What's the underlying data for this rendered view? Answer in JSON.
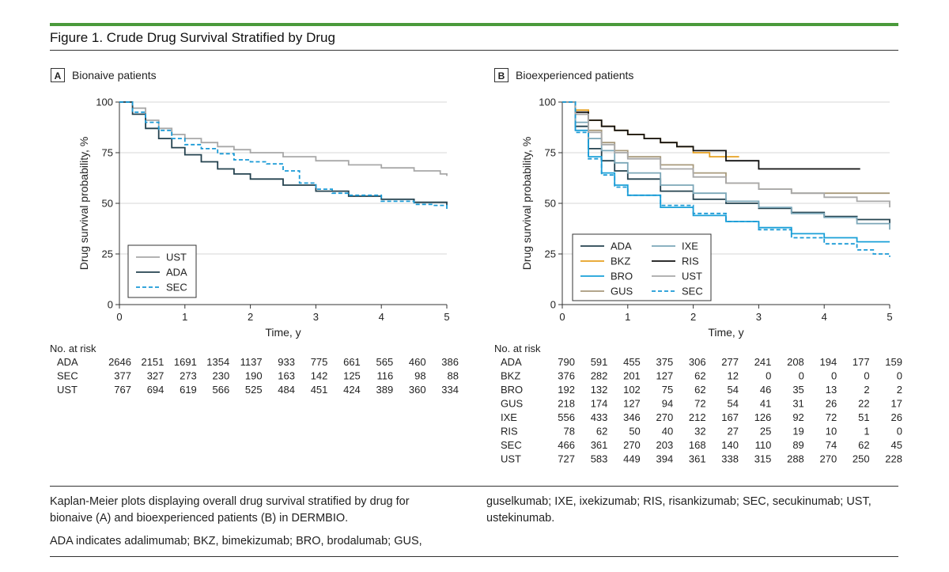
{
  "colors": {
    "title_bar": "#4a9a3b"
  },
  "figure_title": "Figure 1. Crude Drug Survival Stratified by Drug",
  "panels": [
    {
      "letter": "A",
      "label": "Bionaive patients"
    },
    {
      "letter": "B",
      "label": "Bioexperienced patients"
    }
  ],
  "risk_table_label": "No. at risk",
  "caption": {
    "col1": [
      "Kaplan-Meier plots displaying overall drug survival stratified by drug for bionaive (A) and bioexperienced patients (B) in DERMBIO.",
      "ADA indicates adalimumab; BKZ, bimekizumab; BRO, brodalumab; GUS,"
    ],
    "col2": [
      "guselkumab; IXE, ixekizumab; RIS, risankizumab; SEC, secukinumab; UST, ustekinumab."
    ]
  },
  "chart_data": [
    {
      "type": "line",
      "panel": "A",
      "xlabel": "Time, y",
      "ylabel": "Drug survival probability, %",
      "xlim": [
        0,
        5
      ],
      "ylim": [
        0,
        100
      ],
      "xticks": [
        0,
        1,
        2,
        3,
        4,
        5
      ],
      "yticks": [
        0,
        25,
        50,
        75,
        100
      ],
      "grid": "horizontal",
      "legend_position": "bottom-left",
      "series": [
        {
          "name": "UST",
          "color": "#a8a8a8",
          "dash": "solid",
          "x": [
            0,
            0.2,
            0.4,
            0.6,
            0.8,
            1.0,
            1.25,
            1.5,
            1.75,
            2.0,
            2.5,
            3.0,
            3.5,
            4.0,
            4.5,
            4.9,
            5.0
          ],
          "y": [
            100,
            97,
            91,
            87,
            84,
            82,
            80,
            78,
            76.5,
            75,
            73,
            71,
            69,
            67.5,
            66,
            64.5,
            63.5
          ]
        },
        {
          "name": "ADA",
          "color": "#24424f",
          "dash": "solid",
          "x": [
            0,
            0.2,
            0.4,
            0.6,
            0.8,
            1.0,
            1.25,
            1.5,
            1.75,
            2.0,
            2.5,
            3.0,
            3.5,
            4.0,
            4.5,
            5.0
          ],
          "y": [
            100,
            94,
            87,
            82,
            77.5,
            74,
            70.5,
            67,
            64.5,
            62,
            59,
            56,
            53.5,
            52,
            50.5,
            49
          ]
        },
        {
          "name": "SEC",
          "color": "#1a9ad6",
          "dash": "dashed",
          "x": [
            0,
            0.2,
            0.4,
            0.6,
            0.8,
            1.0,
            1.25,
            1.5,
            1.75,
            2.0,
            2.25,
            2.5,
            2.75,
            3.0,
            3.25,
            3.5,
            4.0,
            4.5,
            4.8,
            5.0
          ],
          "y": [
            100,
            95,
            90,
            86,
            82,
            79,
            77,
            74.5,
            71.5,
            70.5,
            69.5,
            66,
            60,
            57,
            55,
            54,
            51,
            49.5,
            49,
            46.5
          ]
        }
      ],
      "risk_table": {
        "times": [
          0,
          0.5,
          1,
          1.5,
          2,
          2.5,
          3,
          3.5,
          4,
          4.5,
          5
        ],
        "rows": [
          {
            "name": "ADA",
            "values": [
              2646,
              2151,
              1691,
              1354,
              1137,
              933,
              775,
              661,
              565,
              460,
              386
            ]
          },
          {
            "name": "SEC",
            "values": [
              377,
              327,
              273,
              230,
              190,
              163,
              142,
              125,
              116,
              98,
              88
            ]
          },
          {
            "name": "UST",
            "values": [
              767,
              694,
              619,
              566,
              525,
              484,
              451,
              424,
              389,
              360,
              334
            ]
          }
        ]
      }
    },
    {
      "type": "line",
      "panel": "B",
      "xlabel": "Time, y",
      "ylabel": "Drug survival probability, %",
      "xlim": [
        0,
        5
      ],
      "ylim": [
        0,
        100
      ],
      "xticks": [
        0,
        1,
        2,
        3,
        4,
        5
      ],
      "yticks": [
        0,
        25,
        50,
        75,
        100
      ],
      "grid": "horizontal",
      "legend_position": "bottom-left",
      "series": [
        {
          "name": "ADA",
          "color": "#24424f",
          "dash": "solid",
          "x": [
            0,
            0.2,
            0.4,
            0.6,
            0.8,
            1.0,
            1.5,
            2.0,
            2.5,
            3.0,
            3.5,
            4.0,
            4.5,
            5.0
          ],
          "y": [
            100,
            88,
            77,
            71,
            66,
            62,
            56,
            52,
            50,
            47.5,
            45.5,
            43.5,
            42,
            40
          ]
        },
        {
          "name": "BKZ",
          "color": "#e6a020",
          "dash": "solid",
          "x": [
            0,
            0.2,
            0.4,
            0.6,
            0.8,
            1.0,
            1.25,
            1.5,
            1.75,
            2.0,
            2.25,
            2.5,
            2.7
          ],
          "y": [
            100,
            96,
            91,
            88,
            86,
            84,
            82,
            80,
            78,
            75,
            73,
            73,
            73
          ]
        },
        {
          "name": "BRO",
          "color": "#1aa0d8",
          "dash": "solid",
          "x": [
            0,
            0.2,
            0.4,
            0.6,
            0.8,
            1.0,
            1.5,
            2.0,
            2.5,
            3.0,
            3.5,
            4.0,
            4.5,
            5.0
          ],
          "y": [
            100,
            86,
            73,
            65,
            59,
            54,
            48,
            44,
            41,
            38,
            35,
            33,
            31,
            31
          ]
        },
        {
          "name": "GUS",
          "color": "#a89a7c",
          "dash": "solid",
          "x": [
            0,
            0.2,
            0.4,
            0.6,
            0.8,
            1.0,
            1.5,
            2.0,
            2.5,
            3.0,
            3.5,
            4.0,
            4.5,
            5.0
          ],
          "y": [
            100,
            94,
            86,
            80,
            76,
            73,
            69,
            65,
            60,
            57,
            55,
            55,
            55,
            55
          ]
        },
        {
          "name": "IXE",
          "color": "#7ca7b8",
          "dash": "solid",
          "x": [
            0,
            0.2,
            0.4,
            0.6,
            0.8,
            1.0,
            1.5,
            2.0,
            2.5,
            3.0,
            3.5,
            4.0,
            4.5,
            5.0
          ],
          "y": [
            100,
            90,
            82,
            76,
            70,
            65,
            59,
            55,
            51,
            48,
            45,
            43,
            40,
            37
          ]
        },
        {
          "name": "RIS",
          "color": "#111111",
          "dash": "solid",
          "x": [
            0,
            0.2,
            0.4,
            0.6,
            0.8,
            1.0,
            1.25,
            1.5,
            1.75,
            2.0,
            2.5,
            3.0,
            3.5,
            4.0,
            4.55
          ],
          "y": [
            100,
            95,
            91,
            88,
            86,
            84,
            82,
            80,
            78,
            76,
            71,
            67,
            67,
            67,
            67
          ]
        },
        {
          "name": "UST",
          "color": "#a8a8a8",
          "dash": "solid",
          "x": [
            0,
            0.2,
            0.4,
            0.6,
            0.8,
            1.0,
            1.5,
            2.0,
            2.5,
            3.0,
            3.5,
            4.0,
            4.5,
            5.0
          ],
          "y": [
            100,
            94,
            85,
            79,
            75,
            72,
            67,
            63,
            60,
            57,
            55,
            53,
            51,
            48
          ]
        },
        {
          "name": "SEC",
          "color": "#1a9ad6",
          "dash": "dashed",
          "x": [
            0,
            0.2,
            0.4,
            0.6,
            0.8,
            1.0,
            1.5,
            2.0,
            2.5,
            3.0,
            3.5,
            4.0,
            4.5,
            4.75,
            5.0
          ],
          "y": [
            100,
            85,
            72,
            64,
            58,
            54,
            49,
            45,
            41,
            37,
            33,
            30,
            27,
            25,
            23.5
          ]
        }
      ],
      "risk_table": {
        "times": [
          0,
          0.5,
          1,
          1.5,
          2,
          2.5,
          3,
          3.5,
          4,
          4.5,
          5
        ],
        "rows": [
          {
            "name": "ADA",
            "values": [
              790,
              591,
              455,
              375,
              306,
              277,
              241,
              208,
              194,
              177,
              159
            ]
          },
          {
            "name": "BKZ",
            "values": [
              376,
              282,
              201,
              127,
              62,
              12,
              0,
              0,
              0,
              0,
              0
            ]
          },
          {
            "name": "BRO",
            "values": [
              192,
              132,
              102,
              75,
              62,
              54,
              46,
              35,
              13,
              2,
              2
            ]
          },
          {
            "name": "GUS",
            "values": [
              218,
              174,
              127,
              94,
              72,
              54,
              41,
              31,
              26,
              22,
              17
            ]
          },
          {
            "name": "IXE",
            "values": [
              556,
              433,
              346,
              270,
              212,
              167,
              126,
              92,
              72,
              51,
              26
            ]
          },
          {
            "name": "RIS",
            "values": [
              78,
              62,
              50,
              40,
              32,
              27,
              25,
              19,
              10,
              1,
              0
            ]
          },
          {
            "name": "SEC",
            "values": [
              466,
              361,
              270,
              203,
              168,
              140,
              110,
              89,
              74,
              62,
              45
            ]
          },
          {
            "name": "UST",
            "values": [
              727,
              583,
              449,
              394,
              361,
              338,
              315,
              288,
              270,
              250,
              228
            ]
          }
        ]
      }
    }
  ]
}
